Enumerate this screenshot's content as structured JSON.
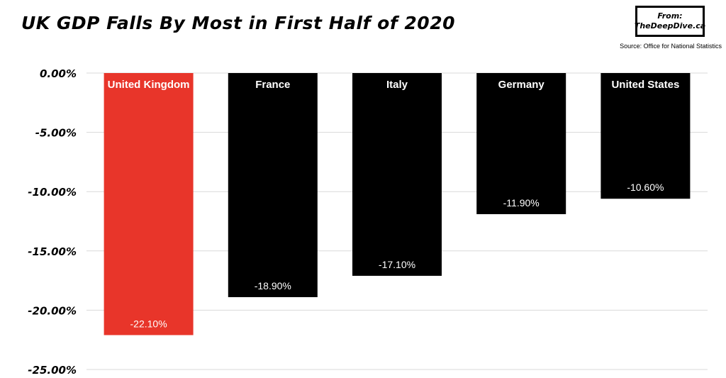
{
  "header": {
    "title": "UK GDP Falls By Most in First Half of 2020",
    "logo_line1": "From:",
    "logo_line2": "TheDeepDive.ca",
    "source": "Source: Office for National Statistics"
  },
  "chart_data": {
    "type": "bar",
    "title": "UK GDP Falls By Most in First Half of 2020",
    "xlabel": "",
    "ylabel": "",
    "categories": [
      "United Kingdom",
      "France",
      "Italy",
      "Germany",
      "United States"
    ],
    "values": [
      -22.1,
      -18.9,
      -17.1,
      -11.9,
      -10.6
    ],
    "value_labels": [
      "-22.10%",
      "-18.90%",
      "-17.10%",
      "-11.90%",
      "-10.60%"
    ],
    "y_ticks": [
      0,
      -5,
      -10,
      -15,
      -20,
      -25
    ],
    "y_tick_labels": [
      "0.00%",
      "-5.00%",
      "-10.00%",
      "-15.00%",
      "-20.00%",
      "-25.00%"
    ],
    "ylim": [
      -25,
      0
    ],
    "grid": true,
    "legend": "none",
    "colors": [
      "#e8352a",
      "#000000",
      "#000000",
      "#000000",
      "#000000"
    ]
  }
}
